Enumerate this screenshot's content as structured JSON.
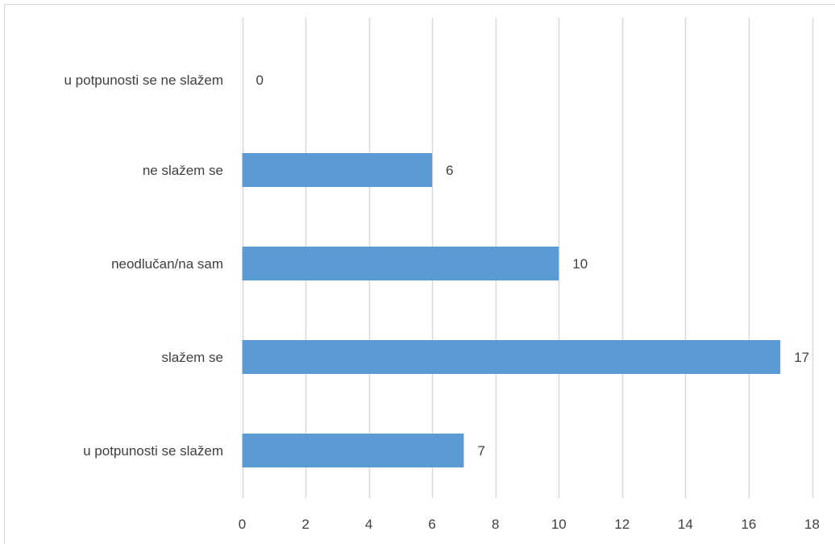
{
  "chart_data": {
    "type": "bar",
    "orientation": "horizontal",
    "title": "",
    "xlabel": "",
    "ylabel": "",
    "categories": [
      "u potpunosti se ne slažem",
      "ne slažem se",
      "neodlučan/na sam",
      "slažem se",
      "u potpunosti se slažem"
    ],
    "values": [
      0,
      6,
      10,
      17,
      7
    ],
    "data_labels": [
      "0",
      "6",
      "10",
      "17",
      "7"
    ],
    "xlim": [
      0,
      18
    ],
    "xticks": [
      0,
      2,
      4,
      6,
      8,
      10,
      12,
      14,
      16,
      18
    ],
    "xtick_labels": [
      "0",
      "2",
      "4",
      "6",
      "8",
      "10",
      "12",
      "14",
      "16",
      "18"
    ],
    "grid": "vertical",
    "legend": "none",
    "colors": {
      "bar": "#5B9BD5",
      "grid": "#D9D9D9",
      "text": "#404040",
      "border": "#D9D9D9"
    }
  }
}
